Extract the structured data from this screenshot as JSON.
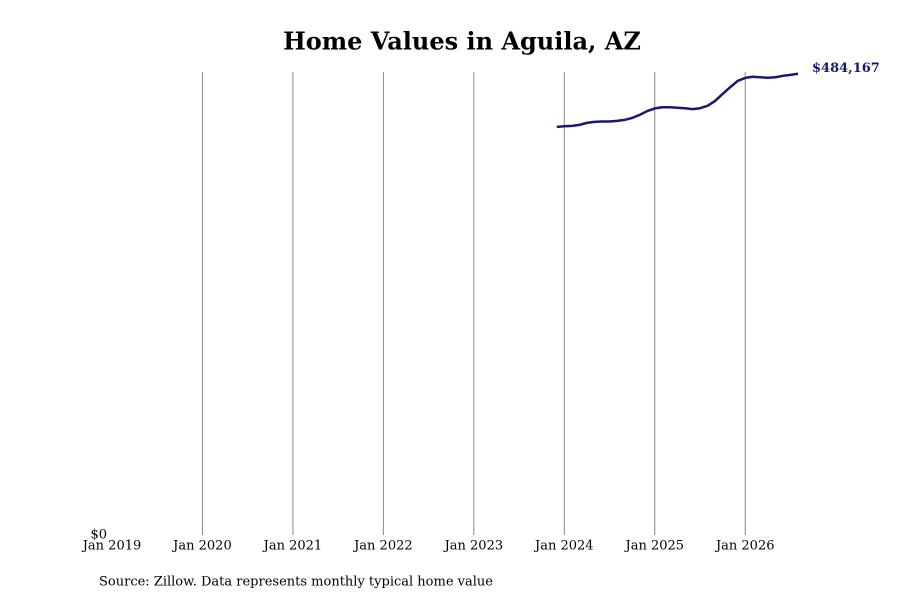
{
  "chart_data": {
    "type": "line",
    "title": "Home Values in Aguila, AZ",
    "source": "Source: Zillow. Data represents monthly typical home value",
    "x": [
      "2023-12",
      "2024-01",
      "2024-02",
      "2024-03",
      "2024-04",
      "2024-05",
      "2024-06",
      "2024-07",
      "2024-08",
      "2024-09",
      "2024-10",
      "2024-11",
      "2024-12",
      "2025-01",
      "2025-02",
      "2025-03",
      "2025-04",
      "2025-05",
      "2025-06",
      "2025-07",
      "2025-08",
      "2025-09",
      "2025-10",
      "2025-11",
      "2025-12",
      "2026-01",
      "2026-02",
      "2026-03",
      "2026-04",
      "2026-05",
      "2026-06",
      "2026-07",
      "2026-08"
    ],
    "series": [
      {
        "name": "Home value",
        "color": "#191970",
        "values": [
          428400,
          429000,
          429500,
          430500,
          432600,
          433700,
          434000,
          434000,
          434700,
          435700,
          437800,
          441000,
          445000,
          447800,
          449000,
          449000,
          448500,
          448000,
          447000,
          448000,
          450500,
          455600,
          463000,
          470000,
          476600,
          479800,
          481000,
          480500,
          480000,
          480500,
          482000,
          483000,
          484167
        ],
        "value_labels": [
          null,
          null,
          null,
          null,
          null,
          null,
          null,
          null,
          null,
          null,
          null,
          null,
          null,
          null,
          null,
          null,
          null,
          null,
          null,
          null,
          null,
          null,
          null,
          null,
          null,
          null,
          null,
          null,
          null,
          null,
          null,
          null,
          "$484,167"
        ]
      }
    ],
    "xlim": [
      "2019-01",
      "2026-08"
    ],
    "xticks": [
      {
        "value": "2019-01",
        "label": "Jan 2019"
      },
      {
        "value": "2020-01",
        "label": "Jan 2020"
      },
      {
        "value": "2021-01",
        "label": "Jan 2021"
      },
      {
        "value": "2022-01",
        "label": "Jan 2022"
      },
      {
        "value": "2023-01",
        "label": "Jan 2023"
      },
      {
        "value": "2024-01",
        "label": "Jan 2024"
      },
      {
        "value": "2025-01",
        "label": "Jan 2025"
      },
      {
        "value": "2026-01",
        "label": "Jan 2026"
      }
    ],
    "ylim": [
      0,
      486000
    ],
    "yticks": [
      {
        "value": 0,
        "label": "$0"
      }
    ],
    "grid": true
  }
}
